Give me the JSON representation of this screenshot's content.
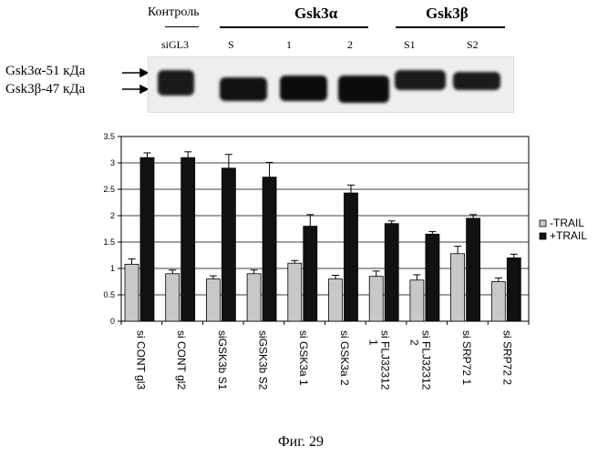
{
  "blot": {
    "header_control": "Контроль",
    "header_alpha": "Gsk3α",
    "header_beta": "Gsk3β",
    "lanes": [
      "siGL3",
      "S",
      "1",
      "2",
      "S1",
      "S2"
    ],
    "marker_alpha": "Gsk3α-51 кДа",
    "marker_beta": "Gsk3β-47 кДа"
  },
  "caption": "Фиг. 29",
  "chart_data": {
    "type": "bar",
    "categories": [
      "si CONT gl3",
      "si CONT gl2",
      "siGSK3b S1",
      "siGSK3b S2",
      "si GSK3a 1",
      "si GSK3a 2",
      "si FLJ32312 1",
      "si FLJ32312 2",
      "si SRP72 1",
      "si SRP72 2"
    ],
    "series": [
      {
        "name": "-TRAIL",
        "values": [
          1.08,
          0.9,
          0.8,
          0.9,
          1.1,
          0.8,
          0.85,
          0.78,
          1.28,
          0.75
        ],
        "errors": [
          0.1,
          0.07,
          0.06,
          0.07,
          0.05,
          0.07,
          0.1,
          0.1,
          0.14,
          0.07
        ],
        "color": "#c8c8c8"
      },
      {
        "name": "+TRAIL",
        "values": [
          3.1,
          3.1,
          2.9,
          2.73,
          1.8,
          2.43,
          1.85,
          1.65,
          1.95,
          1.2
        ],
        "errors": [
          0.09,
          0.11,
          0.26,
          0.28,
          0.22,
          0.15,
          0.05,
          0.05,
          0.07,
          0.07
        ],
        "color": "#111111"
      }
    ],
    "ylim": [
      0,
      3.5
    ],
    "yticks": [
      "0",
      "0.5",
      "1",
      "1.5",
      "2",
      "2.5",
      "3",
      "3.5"
    ],
    "grid": true,
    "legend_position": "right"
  }
}
